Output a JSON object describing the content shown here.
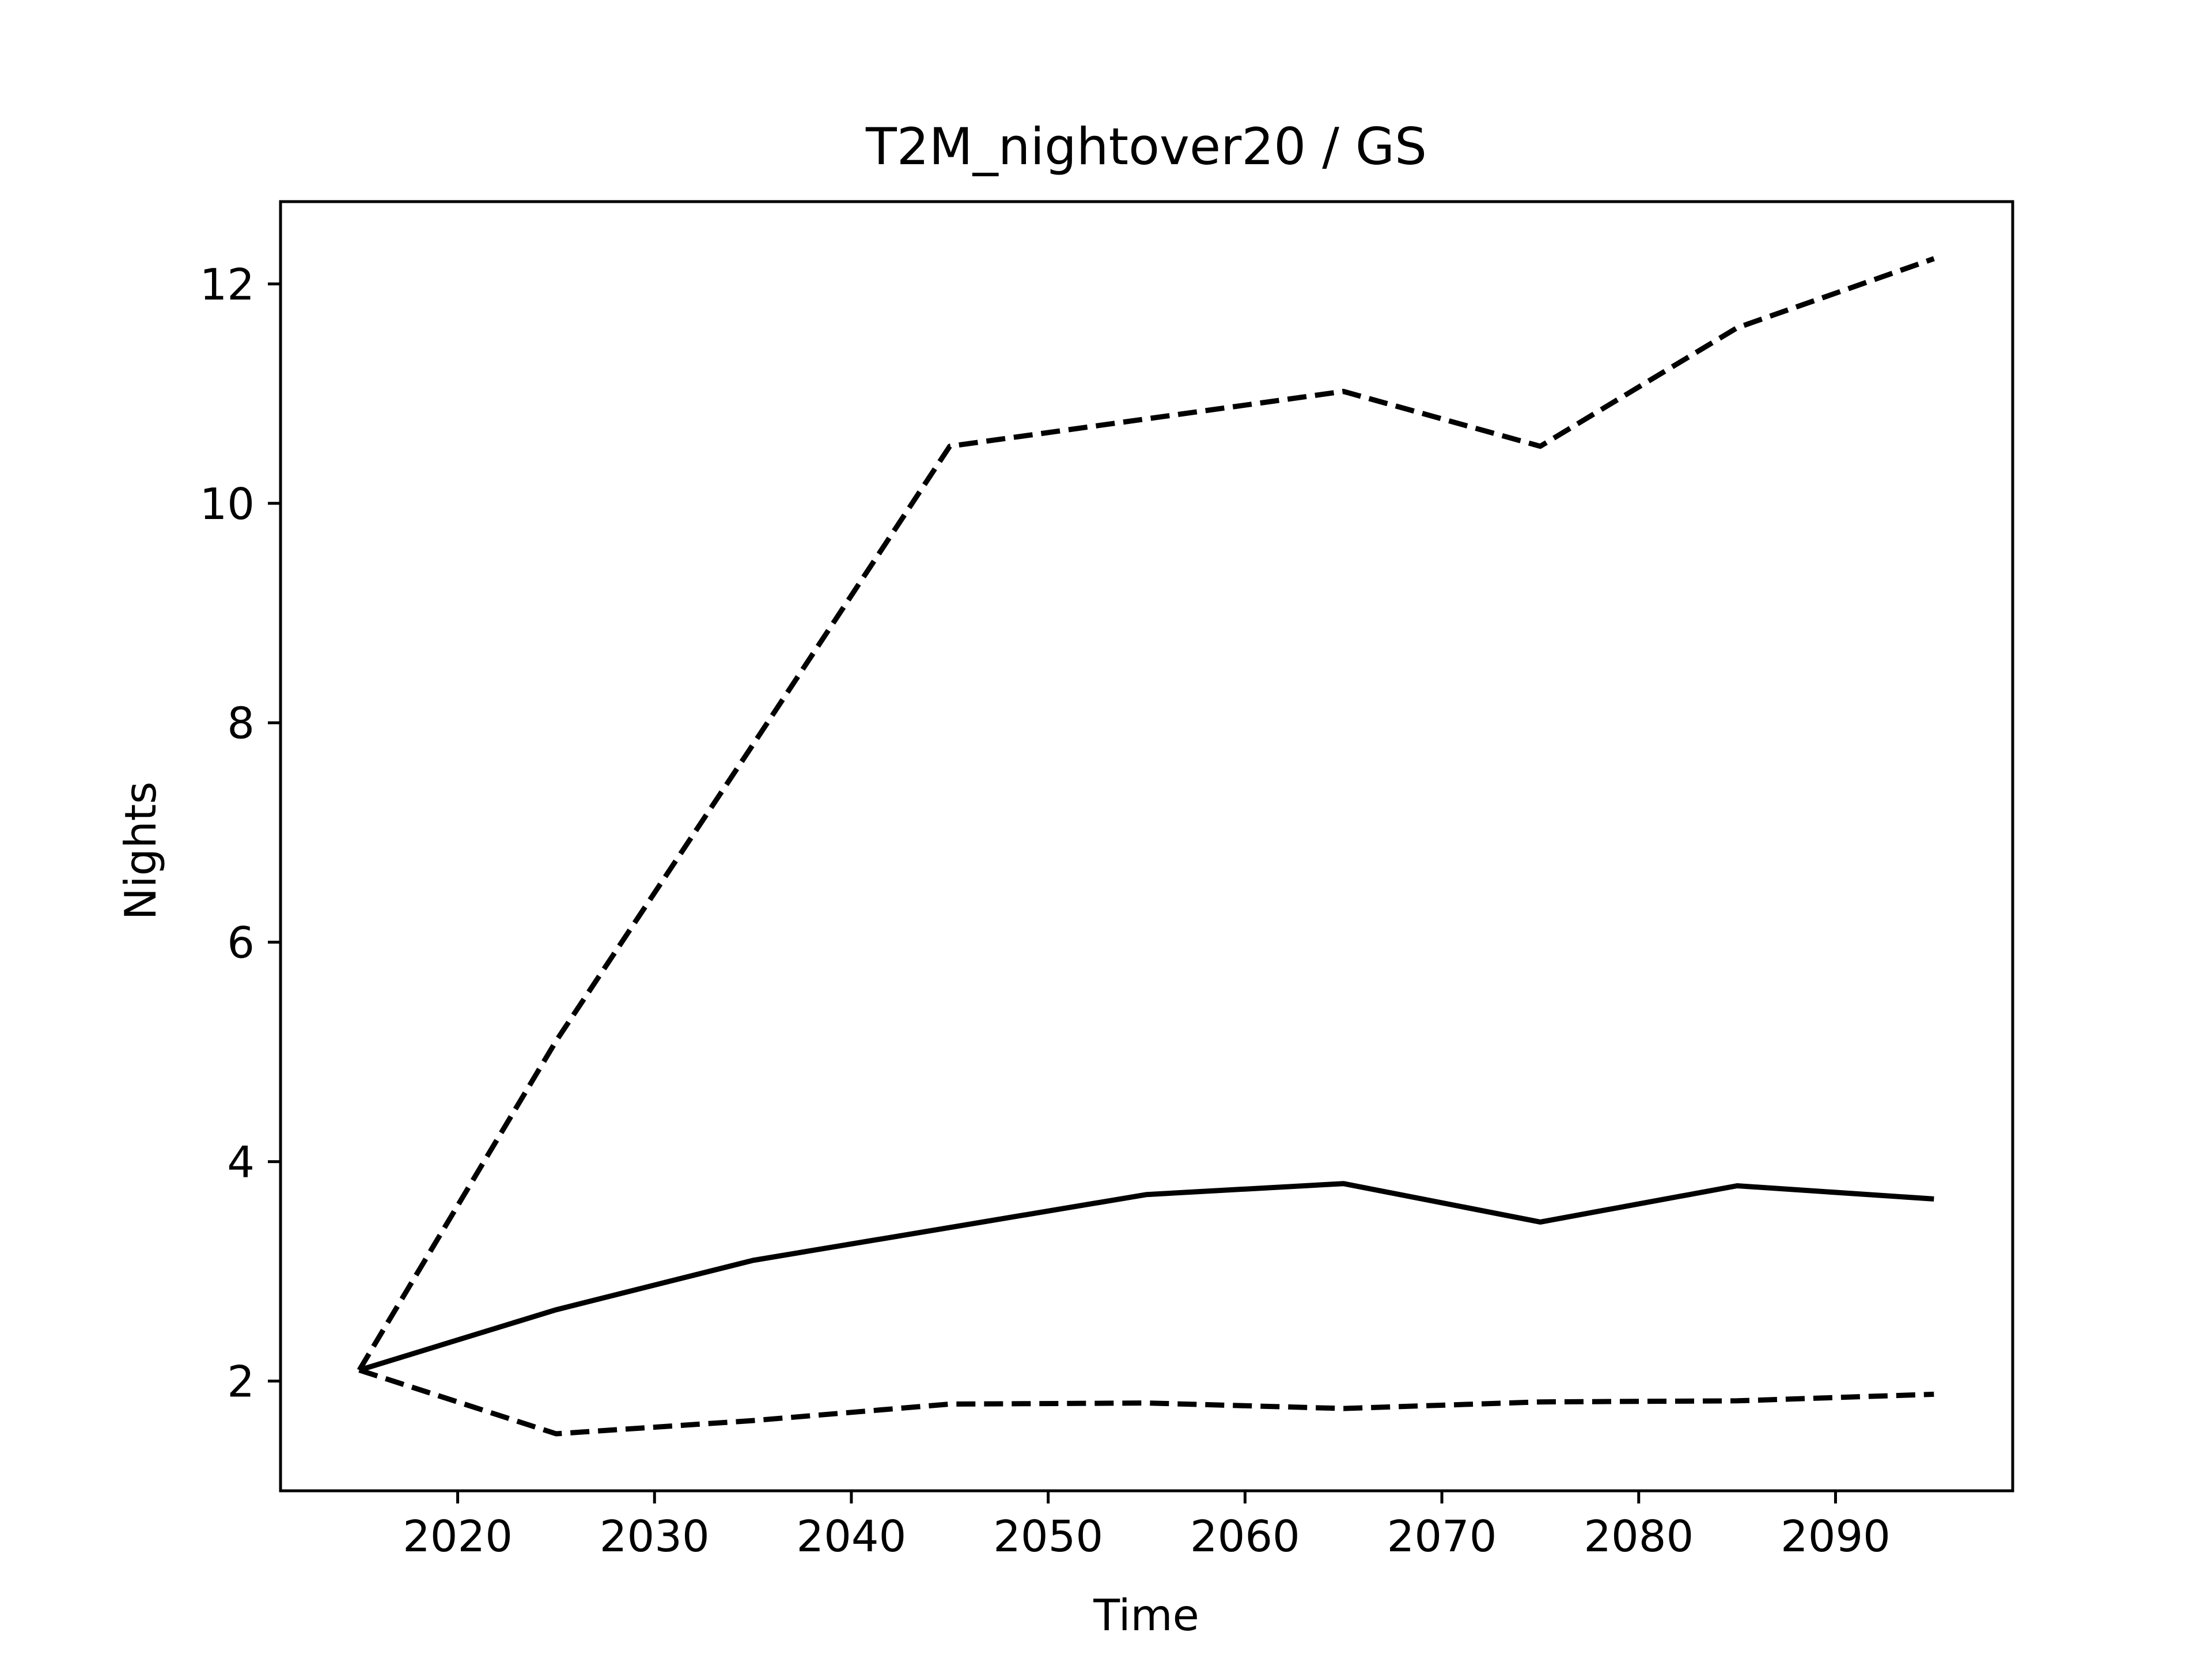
{
  "chart_data": {
    "type": "line",
    "title": "T2M_nightover20 / GS",
    "xlabel": "Time",
    "ylabel": "Nights",
    "xlim": [
      2011,
      2099
    ],
    "ylim": [
      1.0,
      12.75
    ],
    "x_ticks": [
      2020,
      2030,
      2040,
      2050,
      2060,
      2070,
      2080,
      2090
    ],
    "y_ticks": [
      2,
      4,
      6,
      8,
      10,
      12
    ],
    "grid": false,
    "legend": "none",
    "x": [
      2015,
      2025,
      2035,
      2045,
      2055,
      2065,
      2075,
      2085,
      2095
    ],
    "series": [
      {
        "style": "solid",
        "color": "#000000",
        "values": [
          2.1,
          2.65,
          3.1,
          3.4,
          3.7,
          3.8,
          3.45,
          3.78,
          3.66
        ]
      },
      {
        "style": "dashed",
        "color": "#000000",
        "values": [
          2.1,
          5.1,
          7.8,
          10.52,
          10.77,
          11.02,
          10.52,
          11.6,
          12.23
        ]
      },
      {
        "style": "dashed",
        "color": "#000000",
        "values": [
          2.1,
          1.52,
          1.64,
          1.79,
          1.8,
          1.75,
          1.81,
          1.82,
          1.88
        ]
      }
    ]
  }
}
